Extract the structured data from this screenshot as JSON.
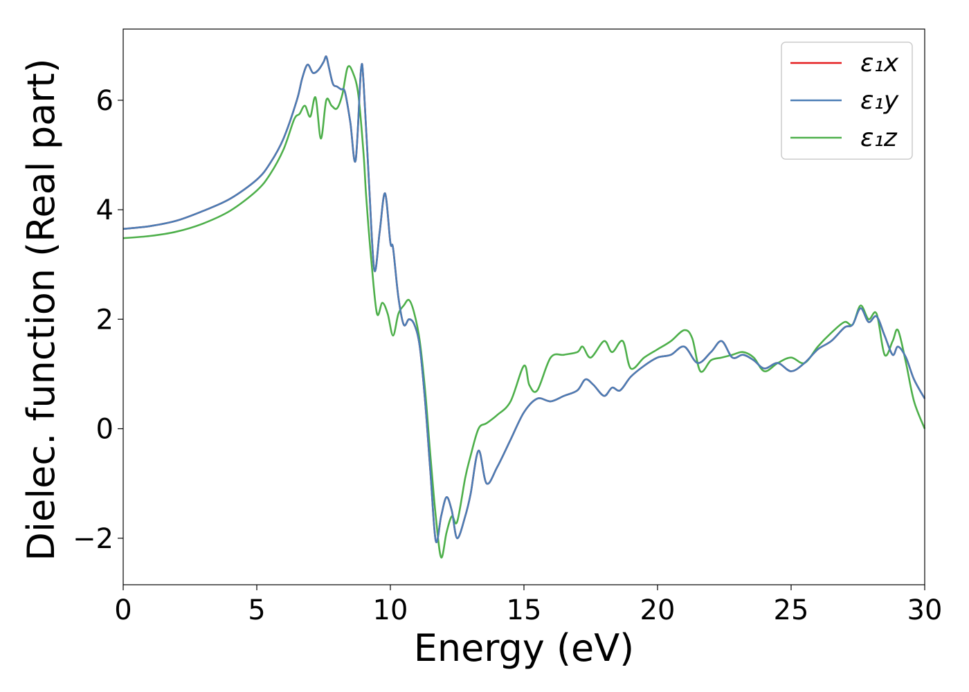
{
  "chart_data": {
    "type": "line",
    "xlabel": "Energy (eV)",
    "ylabel": "Dielec. function (Real part)",
    "xlim": [
      0,
      30
    ],
    "ylim": [
      -2.85,
      7.3
    ],
    "xticks": [
      0,
      5,
      10,
      15,
      20,
      25,
      30
    ],
    "xtick_labels": [
      "0",
      "5",
      "10",
      "15",
      "20",
      "25",
      "30"
    ],
    "yticks": [
      -2,
      0,
      2,
      4,
      6
    ],
    "ytick_labels": [
      "−2",
      "0",
      "2",
      "4",
      "6"
    ],
    "grid": false,
    "legend_position": "top-right",
    "series": [
      {
        "name": "ε₁x",
        "color": "#e41a1c",
        "x": [
          0,
          1,
          2,
          3,
          4,
          5,
          5.5,
          6,
          6.5,
          6.7,
          6.9,
          7.1,
          7.3,
          7.5,
          7.6,
          7.7,
          7.85,
          8.0,
          8.15,
          8.3,
          8.5,
          8.7,
          8.9,
          9.0,
          9.2,
          9.4,
          9.6,
          9.8,
          10.0,
          10.1,
          10.3,
          10.5,
          10.7,
          10.9,
          11.1,
          11.3,
          11.5,
          11.7,
          11.9,
          12.1,
          12.3,
          12.5,
          12.8,
          13.0,
          13.3,
          13.6,
          14.0,
          14.5,
          15.0,
          15.5,
          16.0,
          16.5,
          17.0,
          17.3,
          17.6,
          18.0,
          18.3,
          18.6,
          19.0,
          19.5,
          20.0,
          20.5,
          21.0,
          21.5,
          22.0,
          22.4,
          22.8,
          23.2,
          23.6,
          24.0,
          24.5,
          25.0,
          25.5,
          26.0,
          26.5,
          27.0,
          27.3,
          27.6,
          27.9,
          28.2,
          28.5,
          28.8,
          29.0,
          29.3,
          29.6,
          30.0
        ],
        "y": [
          3.65,
          3.7,
          3.8,
          3.98,
          4.2,
          4.55,
          4.85,
          5.3,
          6.0,
          6.4,
          6.65,
          6.5,
          6.55,
          6.7,
          6.8,
          6.6,
          6.3,
          6.25,
          6.2,
          6.15,
          5.6,
          4.9,
          6.55,
          6.3,
          4.5,
          2.9,
          3.6,
          4.3,
          3.4,
          3.3,
          2.4,
          1.9,
          2.0,
          1.9,
          1.5,
          0.5,
          -0.8,
          -2.05,
          -1.6,
          -1.25,
          -1.5,
          -2.0,
          -1.6,
          -1.2,
          -0.4,
          -1.0,
          -0.7,
          -0.2,
          0.3,
          0.55,
          0.5,
          0.6,
          0.7,
          0.9,
          0.8,
          0.6,
          0.75,
          0.7,
          0.95,
          1.15,
          1.3,
          1.35,
          1.5,
          1.2,
          1.4,
          1.6,
          1.3,
          1.35,
          1.25,
          1.1,
          1.2,
          1.05,
          1.2,
          1.45,
          1.6,
          1.85,
          1.9,
          2.2,
          1.95,
          2.05,
          1.7,
          1.35,
          1.5,
          1.3,
          0.9,
          0.55
        ]
      },
      {
        "name": "ε₁y",
        "color": "#4a7db5",
        "x": [
          0,
          1,
          2,
          3,
          4,
          5,
          5.5,
          6,
          6.5,
          6.7,
          6.9,
          7.1,
          7.3,
          7.5,
          7.6,
          7.7,
          7.85,
          8.0,
          8.15,
          8.3,
          8.5,
          8.7,
          8.9,
          9.0,
          9.2,
          9.4,
          9.6,
          9.8,
          10.0,
          10.1,
          10.3,
          10.5,
          10.7,
          10.9,
          11.1,
          11.3,
          11.5,
          11.7,
          11.9,
          12.1,
          12.3,
          12.5,
          12.8,
          13.0,
          13.3,
          13.6,
          14.0,
          14.5,
          15.0,
          15.5,
          16.0,
          16.5,
          17.0,
          17.3,
          17.6,
          18.0,
          18.3,
          18.6,
          19.0,
          19.5,
          20.0,
          20.5,
          21.0,
          21.5,
          22.0,
          22.4,
          22.8,
          23.2,
          23.6,
          24.0,
          24.5,
          25.0,
          25.5,
          26.0,
          26.5,
          27.0,
          27.3,
          27.6,
          27.9,
          28.2,
          28.5,
          28.8,
          29.0,
          29.3,
          29.6,
          30.0
        ],
        "y": [
          3.65,
          3.7,
          3.8,
          3.98,
          4.2,
          4.55,
          4.85,
          5.3,
          6.0,
          6.4,
          6.65,
          6.5,
          6.55,
          6.7,
          6.8,
          6.6,
          6.3,
          6.25,
          6.2,
          6.15,
          5.6,
          4.9,
          6.55,
          6.3,
          4.5,
          2.9,
          3.6,
          4.3,
          3.4,
          3.3,
          2.4,
          1.9,
          2.0,
          1.9,
          1.5,
          0.5,
          -0.8,
          -2.05,
          -1.6,
          -1.25,
          -1.5,
          -2.0,
          -1.6,
          -1.2,
          -0.4,
          -1.0,
          -0.7,
          -0.2,
          0.3,
          0.55,
          0.5,
          0.6,
          0.7,
          0.9,
          0.8,
          0.6,
          0.75,
          0.7,
          0.95,
          1.15,
          1.3,
          1.35,
          1.5,
          1.2,
          1.4,
          1.6,
          1.3,
          1.35,
          1.25,
          1.1,
          1.2,
          1.05,
          1.2,
          1.45,
          1.6,
          1.85,
          1.9,
          2.2,
          1.95,
          2.05,
          1.7,
          1.35,
          1.5,
          1.3,
          0.9,
          0.55
        ]
      },
      {
        "name": "ε₁z",
        "color": "#4daf4a",
        "x": [
          0,
          1,
          2,
          3,
          4,
          5,
          5.5,
          6,
          6.4,
          6.6,
          6.8,
          7.0,
          7.2,
          7.4,
          7.6,
          7.8,
          8.0,
          8.2,
          8.4,
          8.6,
          8.8,
          9.0,
          9.1,
          9.3,
          9.5,
          9.7,
          9.9,
          10.1,
          10.3,
          10.5,
          10.7,
          10.9,
          11.1,
          11.3,
          11.5,
          11.7,
          11.9,
          12.1,
          12.3,
          12.5,
          12.8,
          13.0,
          13.3,
          13.6,
          14.0,
          14.5,
          15.0,
          15.2,
          15.5,
          16.0,
          16.5,
          17.0,
          17.2,
          17.5,
          18.0,
          18.3,
          18.7,
          19.0,
          19.5,
          20.0,
          20.5,
          21.0,
          21.3,
          21.6,
          22.0,
          22.4,
          22.8,
          23.2,
          23.6,
          24.0,
          24.5,
          25.0,
          25.5,
          26.0,
          26.5,
          27.0,
          27.3,
          27.6,
          27.9,
          28.2,
          28.5,
          28.8,
          29.0,
          29.3,
          29.6,
          30.0
        ],
        "y": [
          3.48,
          3.52,
          3.6,
          3.75,
          3.98,
          4.35,
          4.65,
          5.1,
          5.65,
          5.75,
          5.9,
          5.7,
          6.05,
          5.3,
          6.0,
          5.9,
          5.85,
          6.1,
          6.6,
          6.5,
          6.1,
          5.0,
          4.2,
          3.0,
          2.1,
          2.3,
          2.1,
          1.7,
          2.1,
          2.25,
          2.35,
          2.1,
          1.6,
          0.7,
          -0.5,
          -1.6,
          -2.35,
          -1.9,
          -1.6,
          -1.7,
          -0.9,
          -0.5,
          0.0,
          0.1,
          0.25,
          0.5,
          1.15,
          0.8,
          0.7,
          1.3,
          1.35,
          1.4,
          1.5,
          1.3,
          1.6,
          1.4,
          1.6,
          1.1,
          1.3,
          1.45,
          1.6,
          1.8,
          1.65,
          1.05,
          1.25,
          1.3,
          1.35,
          1.4,
          1.3,
          1.05,
          1.2,
          1.3,
          1.2,
          1.5,
          1.75,
          1.95,
          1.9,
          2.25,
          2.0,
          2.1,
          1.35,
          1.6,
          1.8,
          1.2,
          0.5,
          0.0
        ]
      }
    ]
  }
}
